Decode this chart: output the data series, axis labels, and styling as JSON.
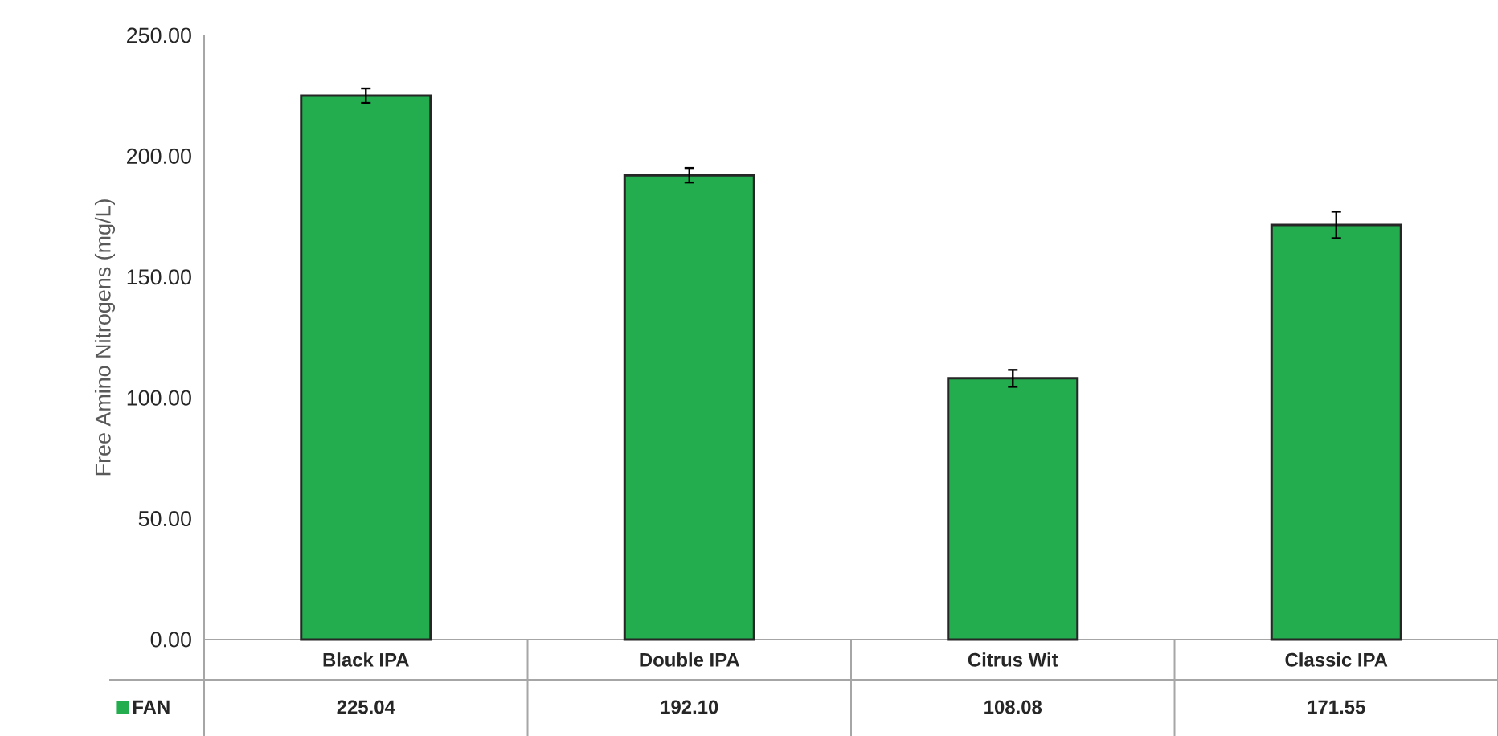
{
  "chart_data": {
    "type": "bar",
    "ylabel": "Free Amino Nitrogens (mg/L)",
    "categories": [
      "Black IPA",
      "Double IPA",
      "Citrus Wit",
      "Classic IPA"
    ],
    "series": [
      {
        "name": "FAN",
        "color": "#23ad4f",
        "values": [
          225.04,
          192.1,
          108.08,
          171.55
        ],
        "value_labels": [
          "225.04",
          "192.10",
          "108.08",
          "171.55"
        ],
        "errors": [
          3,
          3,
          3.5,
          5.5
        ]
      }
    ],
    "ylim": [
      0,
      250
    ],
    "yticks": [
      {
        "value": 0,
        "label": "0.00"
      },
      {
        "value": 50,
        "label": "50.00"
      },
      {
        "value": 100,
        "label": "100.00"
      },
      {
        "value": 150,
        "label": "150.00"
      },
      {
        "value": 200,
        "label": "200.00"
      },
      {
        "value": 250,
        "label": "250.00"
      }
    ],
    "grid": false,
    "legend": "bottom left"
  }
}
